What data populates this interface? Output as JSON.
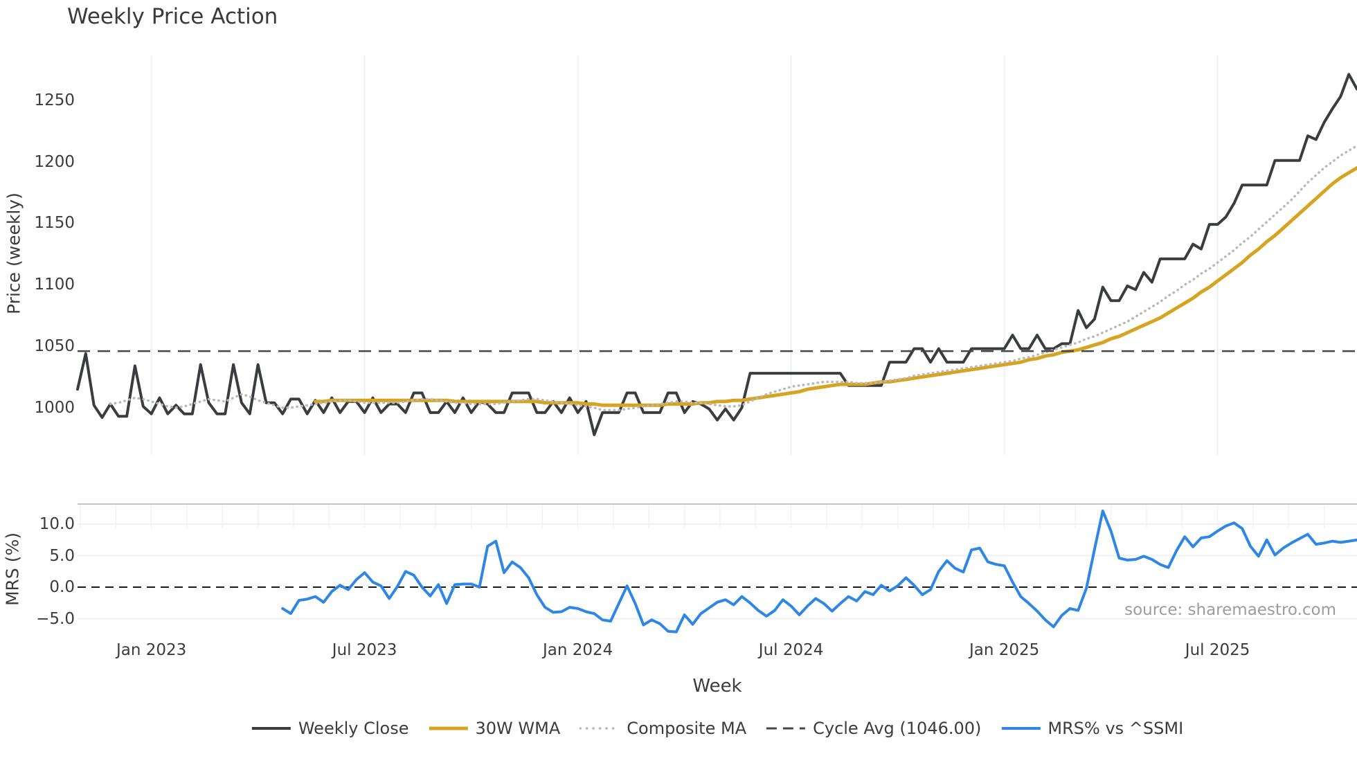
{
  "title": "Weekly Price Action",
  "source_note": "source: sharemaestro.com",
  "chart_data": {
    "type": "line",
    "title": "Weekly Price Action",
    "xlabel": "Week",
    "x_ticks": [
      {
        "label": "Jan 2023",
        "week": 9
      },
      {
        "label": "Jul 2023",
        "week": 35
      },
      {
        "label": "Jan 2024",
        "week": 61
      },
      {
        "label": "Jul 2024",
        "week": 87
      },
      {
        "label": "Jan 2025",
        "week": 113
      },
      {
        "label": "Jul 2025",
        "week": 139
      }
    ],
    "weeks_total": 157,
    "minor_ticks_per_month_weeks": 4.3333,
    "panels": [
      {
        "id": "price",
        "ylabel": "Price (weekly)",
        "ylim": [
          972,
          1288
        ],
        "yticks": [
          1250,
          1200,
          1150,
          1100,
          1050,
          1000
        ],
        "ytick_labels": [
          "1250",
          "1200",
          "1150",
          "1100",
          "1050",
          "1000"
        ],
        "grid": "vertical-6mo"
      },
      {
        "id": "mrs",
        "ylabel": "MRS (%)",
        "ylim": [
          -8.6,
          13.3
        ],
        "yticks": [
          10,
          5,
          0,
          -5
        ],
        "ytick_labels": [
          "10.0",
          "5.0",
          "0.0",
          "−5.0"
        ],
        "grid": "horizontal"
      }
    ],
    "cycle_avg": 1046.0,
    "zero_line": {
      "panel": "mrs",
      "value": 0,
      "style": "dashed",
      "color": "#1a1a1a"
    },
    "series": [
      {
        "name": "Weekly Close",
        "panel": "price",
        "color": "#3a3c40",
        "style": "solid",
        "width": 4,
        "start_week": 0,
        "values": [
          1015,
          1044,
          1002,
          992,
          1003,
          993,
          993,
          1034,
          1001,
          995,
          1008,
          995,
          1002,
          995,
          995,
          1035,
          1004,
          995,
          995,
          1035,
          1004,
          995,
          1035,
          1004,
          1004,
          995,
          1007,
          1007,
          995,
          1006,
          996,
          1008,
          996,
          1005,
          1005,
          996,
          1008,
          996,
          1003,
          1003,
          996,
          1012,
          1012,
          996,
          996,
          1005,
          996,
          1008,
          996,
          1005,
          1003,
          996,
          996,
          1012,
          1012,
          1012,
          996,
          996,
          1005,
          996,
          1008,
          996,
          1005,
          978,
          996,
          996,
          996,
          1012,
          1012,
          996,
          996,
          996,
          1012,
          1012,
          996,
          1005,
          1003,
          999,
          990,
          999,
          990,
          1000,
          1028,
          1028,
          1028,
          1028,
          1028,
          1028,
          1028,
          1028,
          1028,
          1028,
          1028,
          1028,
          1018,
          1018,
          1018,
          1018,
          1018,
          1037,
          1037,
          1037,
          1048,
          1048,
          1037,
          1048,
          1037,
          1037,
          1037,
          1048,
          1048,
          1048,
          1048,
          1048,
          1059,
          1048,
          1048,
          1059,
          1048,
          1048,
          1052,
          1052,
          1079,
          1065,
          1072,
          1098,
          1087,
          1087,
          1099,
          1096,
          1110,
          1102,
          1121,
          1121,
          1121,
          1121,
          1133,
          1129,
          1149,
          1149,
          1155,
          1166,
          1181,
          1181,
          1181,
          1181,
          1201,
          1201,
          1201,
          1201,
          1221,
          1218,
          1232,
          1243,
          1253,
          1271,
          1259
        ]
      },
      {
        "name": "30W WMA",
        "panel": "price",
        "color": "#d6a421",
        "style": "solid",
        "width": 5,
        "start_week": 29,
        "values": [
          1005,
          1005,
          1006,
          1006,
          1006,
          1006,
          1006,
          1006,
          1006,
          1006,
          1006,
          1006,
          1006,
          1006,
          1006,
          1006,
          1006,
          1005,
          1005,
          1005,
          1005,
          1005,
          1005,
          1005,
          1005,
          1005,
          1005,
          1005,
          1004,
          1004,
          1004,
          1004,
          1004,
          1003,
          1003,
          1002,
          1002,
          1002,
          1002,
          1002,
          1002,
          1002,
          1002,
          1003,
          1003,
          1003,
          1003,
          1004,
          1004,
          1005,
          1005,
          1006,
          1006,
          1007,
          1008,
          1009,
          1010,
          1011,
          1012,
          1013,
          1015,
          1016,
          1017,
          1018,
          1019,
          1019,
          1019,
          1019,
          1020,
          1021,
          1021,
          1022,
          1023,
          1024,
          1025,
          1026,
          1027,
          1028,
          1029,
          1030,
          1031,
          1032,
          1033,
          1034,
          1035,
          1036,
          1037,
          1039,
          1040,
          1042,
          1043,
          1045,
          1046,
          1047,
          1049,
          1051,
          1053,
          1056,
          1058,
          1061,
          1064,
          1067,
          1070,
          1073,
          1077,
          1081,
          1085,
          1089,
          1094,
          1098,
          1103,
          1108,
          1113,
          1118,
          1124,
          1129,
          1135,
          1140,
          1146,
          1152,
          1158,
          1164,
          1170,
          1176,
          1182,
          1187,
          1191,
          1195
        ]
      },
      {
        "name": "Composite MA",
        "panel": "price",
        "color": "#b9b9b9",
        "style": "dotted",
        "width": 3.5,
        "start_week": 4,
        "values": [
          1003,
          1004,
          1006,
          1008,
          1007,
          1005,
          1003,
          1001,
          1000,
          1001,
          1003,
          1005,
          1007,
          1006,
          1005,
          1008,
          1011,
          1009,
          1006,
          1004,
          1002,
          1000,
          1000,
          1001,
          1002,
          1003,
          1004,
          1005,
          1006,
          1006,
          1005,
          1004,
          1004,
          1004,
          1004,
          1004,
          1005,
          1006,
          1007,
          1007,
          1006,
          1005,
          1004,
          1004,
          1003,
          1003,
          1003,
          1003,
          1004,
          1005,
          1006,
          1007,
          1007,
          1006,
          1005,
          1004,
          1003,
          1002,
          1001,
          1000,
          998,
          998,
          998,
          999,
          1000,
          1001,
          1002,
          1003,
          1004,
          1005,
          1005,
          1004,
          1004,
          1003,
          1002,
          1001,
          1001,
          1002,
          1005,
          1008,
          1011,
          1013,
          1015,
          1017,
          1018,
          1019,
          1020,
          1021,
          1021,
          1021,
          1021,
          1020,
          1020,
          1020,
          1021,
          1022,
          1023,
          1024,
          1026,
          1027,
          1028,
          1029,
          1030,
          1031,
          1032,
          1033,
          1034,
          1035,
          1036,
          1037,
          1038,
          1040,
          1041,
          1043,
          1045,
          1047,
          1049,
          1051,
          1053,
          1056,
          1058,
          1061,
          1064,
          1067,
          1070,
          1074,
          1078,
          1082,
          1086,
          1091,
          1095,
          1100,
          1104,
          1109,
          1113,
          1118,
          1123,
          1128,
          1134,
          1139,
          1145,
          1151,
          1157,
          1163,
          1169,
          1176,
          1183,
          1189,
          1195,
          1200,
          1205,
          1209,
          1213
        ]
      },
      {
        "name": "Cycle Avg (1046.00)",
        "panel": "price",
        "color": "#454545",
        "style": "dashed",
        "width": 2.5,
        "kind": "hline",
        "value": 1046
      },
      {
        "name": "MRS% vs ^SSMI",
        "panel": "mrs",
        "color": "#2f87e5",
        "style": "solid",
        "width": 4,
        "start_week": 25,
        "values": [
          -3.4,
          -4.2,
          -2.1,
          -1.9,
          -1.5,
          -2.4,
          -0.7,
          0.3,
          -0.4,
          1.2,
          2.3,
          0.8,
          0.2,
          -1.8,
          0.1,
          2.5,
          1.9,
          0.0,
          -1.4,
          0.4,
          -2.6,
          0.4,
          0.5,
          0.5,
          0.0,
          6.5,
          7.3,
          2.3,
          4.0,
          3.1,
          1.5,
          -1.2,
          -3.2,
          -4.0,
          -3.9,
          -3.2,
          -3.4,
          -3.9,
          -4.2,
          -5.2,
          -5.4,
          -2.6,
          0.2,
          -2.6,
          -6.0,
          -5.2,
          -5.8,
          -7.0,
          -7.1,
          -4.4,
          -5.9,
          -4.2,
          -3.3,
          -2.4,
          -2.0,
          -2.8,
          -1.5,
          -2.5,
          -3.7,
          -4.6,
          -3.7,
          -2.0,
          -3.0,
          -4.4,
          -3.0,
          -1.8,
          -2.6,
          -3.8,
          -2.6,
          -1.5,
          -2.2,
          -0.7,
          -1.2,
          0.3,
          -0.6,
          0.2,
          1.5,
          0.3,
          -1.2,
          -0.4,
          2.5,
          4.2,
          3.0,
          2.4,
          5.9,
          6.2,
          4.0,
          3.6,
          3.4,
          0.8,
          -1.5,
          -2.6,
          -3.8,
          -5.2,
          -6.3,
          -4.5,
          -3.4,
          -3.7,
          -0.2,
          6.0,
          12.1,
          8.9,
          4.6,
          4.3,
          4.4,
          4.9,
          4.4,
          3.6,
          3.1,
          5.8,
          8.0,
          6.4,
          7.8,
          8.0,
          8.9,
          9.7,
          10.2,
          9.3,
          6.5,
          4.9,
          7.5,
          5.1,
          6.2,
          7.0,
          7.7,
          8.4,
          6.8,
          7.0,
          7.3,
          7.1,
          7.3,
          7.5
        ]
      }
    ],
    "legend_position": "bottom-center",
    "colors": {
      "weekly_close": "#3a3c40",
      "wma30": "#d6a421",
      "composite_ma": "#b9b9b9",
      "cycle_avg": "#454545",
      "mrs": "#2f87e5",
      "grid_vertical": "#e9edf4",
      "grid_horizontal": "#ececec",
      "panel_border": "#c4c4c4",
      "text": "#3c3c3c",
      "source": "#9c9c9c"
    }
  }
}
